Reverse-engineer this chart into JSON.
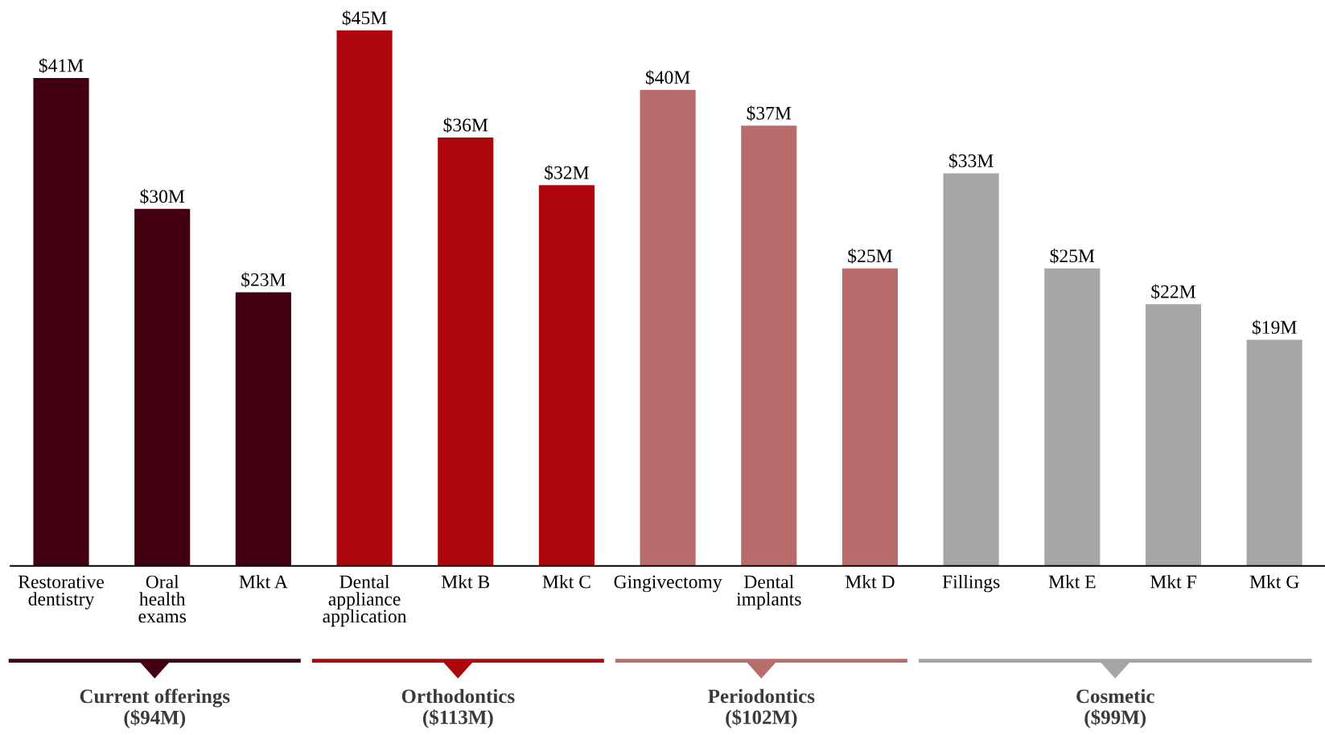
{
  "chart_data": {
    "type": "bar",
    "categories": [
      "Restorative\ndentistry",
      "Oral\nhealth\nexams",
      "Mkt A",
      "Dental\nappliance\napplication",
      "Mkt B",
      "Mkt C",
      "Gingivectomy",
      "Dental\nimplants",
      "Mkt D",
      "Fillings",
      "Mkt E",
      "Mkt F",
      "Mkt G"
    ],
    "values": [
      41,
      30,
      23,
      45,
      36,
      32,
      40,
      37,
      25,
      33,
      25,
      22,
      19
    ],
    "colors": [
      "#420010",
      "#420010",
      "#420010",
      "#ad070d",
      "#ad070d",
      "#ad070d",
      "#b86c6c",
      "#b86c6c",
      "#b86c6c",
      "#a6a6a6",
      "#a6a6a6",
      "#a6a6a6",
      "#a6a6a6"
    ],
    "value_labels": [
      "$41M",
      "$30M",
      "$23M",
      "$45M",
      "$36M",
      "$32M",
      "$40M",
      "$37M",
      "$25M",
      "$33M",
      "$25M",
      "$22M",
      "$19M"
    ],
    "annotations": [
      "Current offerings\n($94M)",
      "Orthodontics\n($113M)",
      "Periodontics\n($102M)",
      "Cosmetic\n($99M)"
    ],
    "tick_labels": "x",
    "grid": false,
    "legend": false
  }
}
